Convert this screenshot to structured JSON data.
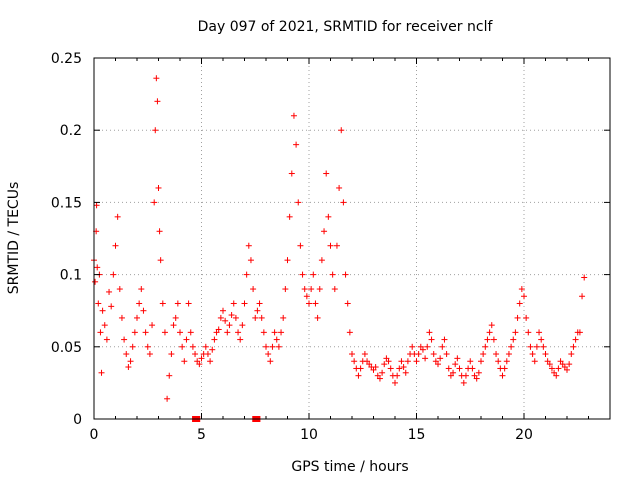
{
  "chart_data": {
    "type": "scatter",
    "title": "Day 097 of 2021, SRMTID for receiver nclf",
    "xlabel": "GPS time / hours",
    "ylabel": "SRMTID / TECUs",
    "xlim": [
      0,
      24
    ],
    "ylim": [
      0,
      0.25
    ],
    "xticks": [
      0,
      5,
      10,
      15,
      20
    ],
    "xtick_labels": [
      "0",
      "5",
      "10",
      "15",
      "20"
    ],
    "yticks": [
      0,
      0.05,
      0.1,
      0.15,
      0.2,
      0.25
    ],
    "ytick_labels": [
      "0",
      "0.05",
      "0.1",
      "0.15",
      "0.2",
      "0.25"
    ],
    "grid": true,
    "marker": "+",
    "series": [
      {
        "color": "#ff0000",
        "points": [
          [
            0.0,
            0.11
          ],
          [
            0.05,
            0.095
          ],
          [
            0.1,
            0.13
          ],
          [
            0.12,
            0.148
          ],
          [
            0.15,
            0.105
          ],
          [
            0.2,
            0.08
          ],
          [
            0.25,
            0.1
          ],
          [
            0.3,
            0.06
          ],
          [
            0.35,
            0.032
          ],
          [
            0.4,
            0.075
          ],
          [
            0.5,
            0.065
          ],
          [
            0.6,
            0.055
          ],
          [
            0.7,
            0.088
          ],
          [
            0.8,
            0.078
          ],
          [
            0.9,
            0.1
          ],
          [
            1.0,
            0.12
          ],
          [
            1.1,
            0.14
          ],
          [
            1.2,
            0.09
          ],
          [
            1.3,
            0.07
          ],
          [
            1.4,
            0.055
          ],
          [
            1.5,
            0.045
          ],
          [
            1.6,
            0.036
          ],
          [
            1.7,
            0.04
          ],
          [
            1.8,
            0.05
          ],
          [
            1.9,
            0.06
          ],
          [
            2.0,
            0.07
          ],
          [
            2.1,
            0.08
          ],
          [
            2.2,
            0.09
          ],
          [
            2.3,
            0.075
          ],
          [
            2.4,
            0.06
          ],
          [
            2.5,
            0.05
          ],
          [
            2.6,
            0.045
          ],
          [
            2.7,
            0.065
          ],
          [
            2.8,
            0.15
          ],
          [
            2.85,
            0.2
          ],
          [
            2.9,
            0.236
          ],
          [
            2.95,
            0.22
          ],
          [
            3.0,
            0.16
          ],
          [
            3.05,
            0.13
          ],
          [
            3.1,
            0.11
          ],
          [
            3.2,
            0.08
          ],
          [
            3.3,
            0.06
          ],
          [
            3.4,
            0.014
          ],
          [
            3.5,
            0.03
          ],
          [
            3.6,
            0.045
          ],
          [
            3.7,
            0.065
          ],
          [
            3.8,
            0.07
          ],
          [
            3.9,
            0.08
          ],
          [
            4.0,
            0.06
          ],
          [
            4.1,
            0.05
          ],
          [
            4.2,
            0.04
          ],
          [
            4.3,
            0.055
          ],
          [
            4.4,
            0.08
          ],
          [
            4.5,
            0.06
          ],
          [
            4.6,
            0.05
          ],
          [
            4.7,
            0.045
          ],
          [
            4.8,
            0.04
          ],
          [
            4.9,
            0.038
          ],
          [
            5.0,
            0.042
          ],
          [
            5.1,
            0.045
          ],
          [
            5.2,
            0.05
          ],
          [
            5.3,
            0.045
          ],
          [
            5.4,
            0.04
          ],
          [
            5.5,
            0.048
          ],
          [
            5.6,
            0.055
          ],
          [
            5.7,
            0.06
          ],
          [
            5.8,
            0.062
          ],
          [
            5.9,
            0.07
          ],
          [
            6.0,
            0.075
          ],
          [
            6.1,
            0.068
          ],
          [
            6.2,
            0.06
          ],
          [
            6.3,
            0.065
          ],
          [
            6.4,
            0.072
          ],
          [
            6.5,
            0.08
          ],
          [
            6.6,
            0.07
          ],
          [
            6.7,
            0.06
          ],
          [
            6.8,
            0.055
          ],
          [
            6.9,
            0.065
          ],
          [
            7.0,
            0.08
          ],
          [
            7.1,
            0.1
          ],
          [
            7.2,
            0.12
          ],
          [
            7.3,
            0.11
          ],
          [
            7.4,
            0.09
          ],
          [
            7.5,
            0.07
          ],
          [
            7.6,
            0.075
          ],
          [
            7.7,
            0.08
          ],
          [
            7.8,
            0.07
          ],
          [
            7.9,
            0.06
          ],
          [
            8.0,
            0.05
          ],
          [
            8.1,
            0.045
          ],
          [
            8.2,
            0.04
          ],
          [
            8.3,
            0.05
          ],
          [
            8.4,
            0.06
          ],
          [
            8.5,
            0.055
          ],
          [
            8.6,
            0.05
          ],
          [
            8.7,
            0.06
          ],
          [
            8.8,
            0.07
          ],
          [
            8.9,
            0.09
          ],
          [
            9.0,
            0.11
          ],
          [
            9.1,
            0.14
          ],
          [
            9.2,
            0.17
          ],
          [
            9.3,
            0.21
          ],
          [
            9.4,
            0.19
          ],
          [
            9.5,
            0.15
          ],
          [
            9.6,
            0.12
          ],
          [
            9.7,
            0.1
          ],
          [
            9.8,
            0.09
          ],
          [
            9.9,
            0.085
          ],
          [
            10.0,
            0.08
          ],
          [
            10.1,
            0.09
          ],
          [
            10.2,
            0.1
          ],
          [
            10.3,
            0.08
          ],
          [
            10.4,
            0.07
          ],
          [
            10.5,
            0.09
          ],
          [
            10.6,
            0.11
          ],
          [
            10.7,
            0.13
          ],
          [
            10.8,
            0.17
          ],
          [
            10.9,
            0.14
          ],
          [
            11.0,
            0.12
          ],
          [
            11.1,
            0.1
          ],
          [
            11.2,
            0.09
          ],
          [
            11.3,
            0.12
          ],
          [
            11.4,
            0.16
          ],
          [
            11.5,
            0.2
          ],
          [
            11.6,
            0.15
          ],
          [
            11.7,
            0.1
          ],
          [
            11.8,
            0.08
          ],
          [
            11.9,
            0.06
          ],
          [
            12.0,
            0.045
          ],
          [
            12.1,
            0.04
          ],
          [
            12.2,
            0.035
          ],
          [
            12.3,
            0.03
          ],
          [
            12.4,
            0.035
          ],
          [
            12.5,
            0.04
          ],
          [
            12.6,
            0.045
          ],
          [
            12.7,
            0.04
          ],
          [
            12.8,
            0.038
          ],
          [
            12.9,
            0.036
          ],
          [
            13.0,
            0.034
          ],
          [
            13.1,
            0.036
          ],
          [
            13.2,
            0.03
          ],
          [
            13.3,
            0.028
          ],
          [
            13.4,
            0.032
          ],
          [
            13.5,
            0.038
          ],
          [
            13.6,
            0.042
          ],
          [
            13.7,
            0.04
          ],
          [
            13.8,
            0.035
          ],
          [
            13.9,
            0.03
          ],
          [
            14.0,
            0.025
          ],
          [
            14.1,
            0.03
          ],
          [
            14.2,
            0.035
          ],
          [
            14.3,
            0.04
          ],
          [
            14.4,
            0.036
          ],
          [
            14.5,
            0.032
          ],
          [
            14.6,
            0.04
          ],
          [
            14.7,
            0.045
          ],
          [
            14.8,
            0.05
          ],
          [
            14.9,
            0.045
          ],
          [
            15.0,
            0.04
          ],
          [
            15.1,
            0.045
          ],
          [
            15.2,
            0.05
          ],
          [
            15.3,
            0.048
          ],
          [
            15.4,
            0.042
          ],
          [
            15.5,
            0.05
          ],
          [
            15.6,
            0.06
          ],
          [
            15.7,
            0.055
          ],
          [
            15.8,
            0.045
          ],
          [
            15.9,
            0.04
          ],
          [
            16.0,
            0.038
          ],
          [
            16.1,
            0.042
          ],
          [
            16.2,
            0.05
          ],
          [
            16.3,
            0.055
          ],
          [
            16.4,
            0.045
          ],
          [
            16.5,
            0.035
          ],
          [
            16.6,
            0.03
          ],
          [
            16.7,
            0.032
          ],
          [
            16.8,
            0.038
          ],
          [
            16.9,
            0.042
          ],
          [
            17.0,
            0.035
          ],
          [
            17.1,
            0.03
          ],
          [
            17.2,
            0.025
          ],
          [
            17.3,
            0.03
          ],
          [
            17.4,
            0.035
          ],
          [
            17.5,
            0.04
          ],
          [
            17.6,
            0.035
          ],
          [
            17.7,
            0.03
          ],
          [
            17.8,
            0.028
          ],
          [
            17.9,
            0.032
          ],
          [
            18.0,
            0.04
          ],
          [
            18.1,
            0.045
          ],
          [
            18.2,
            0.05
          ],
          [
            18.3,
            0.055
          ],
          [
            18.4,
            0.06
          ],
          [
            18.5,
            0.065
          ],
          [
            18.6,
            0.055
          ],
          [
            18.7,
            0.045
          ],
          [
            18.8,
            0.04
          ],
          [
            18.9,
            0.035
          ],
          [
            19.0,
            0.03
          ],
          [
            19.1,
            0.035
          ],
          [
            19.2,
            0.04
          ],
          [
            19.3,
            0.045
          ],
          [
            19.4,
            0.05
          ],
          [
            19.5,
            0.055
          ],
          [
            19.6,
            0.06
          ],
          [
            19.7,
            0.07
          ],
          [
            19.8,
            0.08
          ],
          [
            19.9,
            0.09
          ],
          [
            20.0,
            0.085
          ],
          [
            20.1,
            0.07
          ],
          [
            20.2,
            0.06
          ],
          [
            20.3,
            0.05
          ],
          [
            20.4,
            0.045
          ],
          [
            20.5,
            0.04
          ],
          [
            20.6,
            0.05
          ],
          [
            20.7,
            0.06
          ],
          [
            20.8,
            0.055
          ],
          [
            20.9,
            0.05
          ],
          [
            21.0,
            0.045
          ],
          [
            21.1,
            0.04
          ],
          [
            21.2,
            0.038
          ],
          [
            21.3,
            0.035
          ],
          [
            21.4,
            0.032
          ],
          [
            21.5,
            0.03
          ],
          [
            21.6,
            0.035
          ],
          [
            21.7,
            0.04
          ],
          [
            21.8,
            0.038
          ],
          [
            21.9,
            0.036
          ],
          [
            22.0,
            0.034
          ],
          [
            22.1,
            0.038
          ],
          [
            22.2,
            0.045
          ],
          [
            22.3,
            0.05
          ],
          [
            22.4,
            0.055
          ],
          [
            22.5,
            0.06
          ],
          [
            22.6,
            0.06
          ],
          [
            22.7,
            0.085
          ],
          [
            22.8,
            0.098
          ]
        ],
        "zero_points": [
          [
            4.7,
            0.0
          ],
          [
            4.8,
            0.0
          ],
          [
            7.5,
            0.0
          ],
          [
            7.6,
            0.0
          ]
        ]
      }
    ]
  }
}
